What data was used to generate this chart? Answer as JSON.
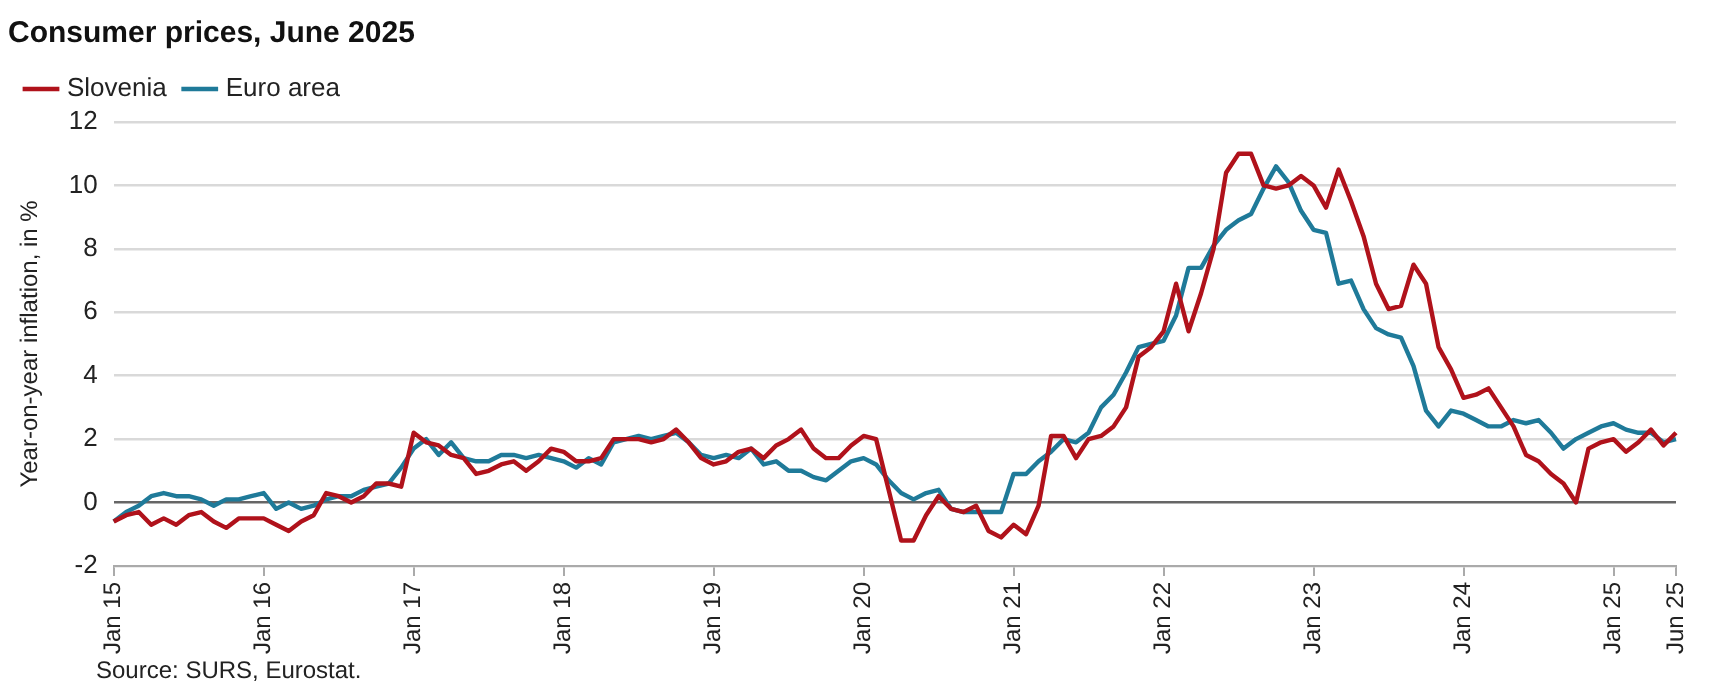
{
  "chart_data": {
    "type": "line",
    "title": "Consumer prices, June 2025",
    "ylabel": "Year-on-year inflation, in %",
    "categories": [
      "Jan 15",
      null,
      null,
      null,
      null,
      null,
      null,
      null,
      null,
      null,
      null,
      null,
      "Jan 16",
      null,
      null,
      null,
      null,
      null,
      null,
      null,
      null,
      null,
      null,
      null,
      "Jan 17",
      null,
      null,
      null,
      null,
      null,
      null,
      null,
      null,
      null,
      null,
      null,
      "Jan 18",
      null,
      null,
      null,
      null,
      null,
      null,
      null,
      null,
      null,
      null,
      null,
      "Jan 19",
      null,
      null,
      null,
      null,
      null,
      null,
      null,
      null,
      null,
      null,
      null,
      "Jan 20",
      null,
      null,
      null,
      null,
      null,
      null,
      null,
      null,
      null,
      null,
      null,
      "Jan 21",
      null,
      null,
      null,
      null,
      null,
      null,
      null,
      null,
      null,
      null,
      null,
      "Jan 22",
      null,
      null,
      null,
      null,
      null,
      null,
      null,
      null,
      null,
      null,
      null,
      "Jan 23",
      null,
      null,
      null,
      null,
      null,
      null,
      null,
      null,
      null,
      null,
      null,
      "Jan 24",
      null,
      null,
      null,
      null,
      null,
      null,
      null,
      null,
      null,
      null,
      null,
      "Jan 25",
      null,
      null,
      null,
      null,
      "Jun 25"
    ],
    "series": [
      {
        "name": "Slovenia",
        "color": "#b0121b",
        "values": [
          -0.6,
          -0.4,
          -0.3,
          -0.7,
          -0.5,
          -0.7,
          -0.4,
          -0.3,
          -0.6,
          -0.8,
          -0.5,
          -0.5,
          -0.5,
          -0.7,
          -0.9,
          -0.6,
          -0.4,
          0.3,
          0.2,
          0.0,
          0.2,
          0.6,
          0.6,
          0.5,
          2.2,
          1.9,
          1.8,
          1.5,
          1.4,
          0.9,
          1.0,
          1.2,
          1.3,
          1.0,
          1.3,
          1.7,
          1.6,
          1.3,
          1.3,
          1.4,
          2.0,
          2.0,
          2.0,
          1.9,
          2.0,
          2.3,
          1.9,
          1.4,
          1.2,
          1.3,
          1.6,
          1.7,
          1.4,
          1.8,
          2.0,
          2.3,
          1.7,
          1.4,
          1.4,
          1.8,
          2.1,
          2.0,
          0.4,
          -1.2,
          -1.2,
          -0.4,
          0.2,
          -0.2,
          -0.3,
          -0.1,
          -0.9,
          -1.1,
          -0.7,
          -1.0,
          -0.1,
          2.1,
          2.1,
          1.4,
          2.0,
          2.1,
          2.4,
          3.0,
          4.6,
          4.9,
          5.4,
          6.9,
          5.4,
          6.6,
          8.0,
          10.4,
          11.0,
          11.0,
          10.0,
          9.9,
          10.0,
          10.3,
          10.0,
          9.3,
          10.5,
          9.5,
          8.4,
          6.9,
          6.1,
          6.2,
          7.5,
          6.9,
          4.9,
          4.2,
          3.3,
          3.4,
          3.6,
          3.0,
          2.4,
          1.5,
          1.3,
          0.9,
          0.6,
          0.0,
          1.7,
          1.9,
          2.0,
          1.6,
          1.9,
          2.3,
          1.8,
          2.2
        ]
      },
      {
        "name": "Euro area",
        "color": "#1f7a99",
        "values": [
          -0.6,
          -0.3,
          -0.1,
          0.2,
          0.3,
          0.2,
          0.2,
          0.1,
          -0.1,
          0.1,
          0.1,
          0.2,
          0.3,
          -0.2,
          0.0,
          -0.2,
          -0.1,
          0.1,
          0.2,
          0.2,
          0.4,
          0.5,
          0.6,
          1.1,
          1.7,
          2.0,
          1.5,
          1.9,
          1.4,
          1.3,
          1.3,
          1.5,
          1.5,
          1.4,
          1.5,
          1.4,
          1.3,
          1.1,
          1.4,
          1.2,
          1.9,
          2.0,
          2.1,
          2.0,
          2.1,
          2.2,
          1.9,
          1.5,
          1.4,
          1.5,
          1.4,
          1.7,
          1.2,
          1.3,
          1.0,
          1.0,
          0.8,
          0.7,
          1.0,
          1.3,
          1.4,
          1.2,
          0.7,
          0.3,
          0.1,
          0.3,
          0.4,
          -0.2,
          -0.3,
          -0.3,
          -0.3,
          -0.3,
          0.9,
          0.9,
          1.3,
          1.6,
          2.0,
          1.9,
          2.2,
          3.0,
          3.4,
          4.1,
          4.9,
          5.0,
          5.1,
          5.9,
          7.4,
          7.4,
          8.1,
          8.6,
          8.9,
          9.1,
          9.9,
          10.6,
          10.1,
          9.2,
          8.6,
          8.5,
          6.9,
          7.0,
          6.1,
          5.5,
          5.3,
          5.2,
          4.3,
          2.9,
          2.4,
          2.9,
          2.8,
          2.6,
          2.4,
          2.4,
          2.6,
          2.5,
          2.6,
          2.2,
          1.7,
          2.0,
          2.2,
          2.4,
          2.5,
          2.3,
          2.2,
          2.2,
          1.9,
          2.0
        ]
      }
    ],
    "ylim": [
      -2,
      12
    ],
    "yticks": [
      -2,
      0,
      2,
      4,
      6,
      8,
      10,
      12
    ],
    "grid": "y",
    "legend": "top left",
    "line_style": "solid",
    "marker": "none",
    "annotations": [
      "Source: SURS, Eurostat."
    ]
  }
}
